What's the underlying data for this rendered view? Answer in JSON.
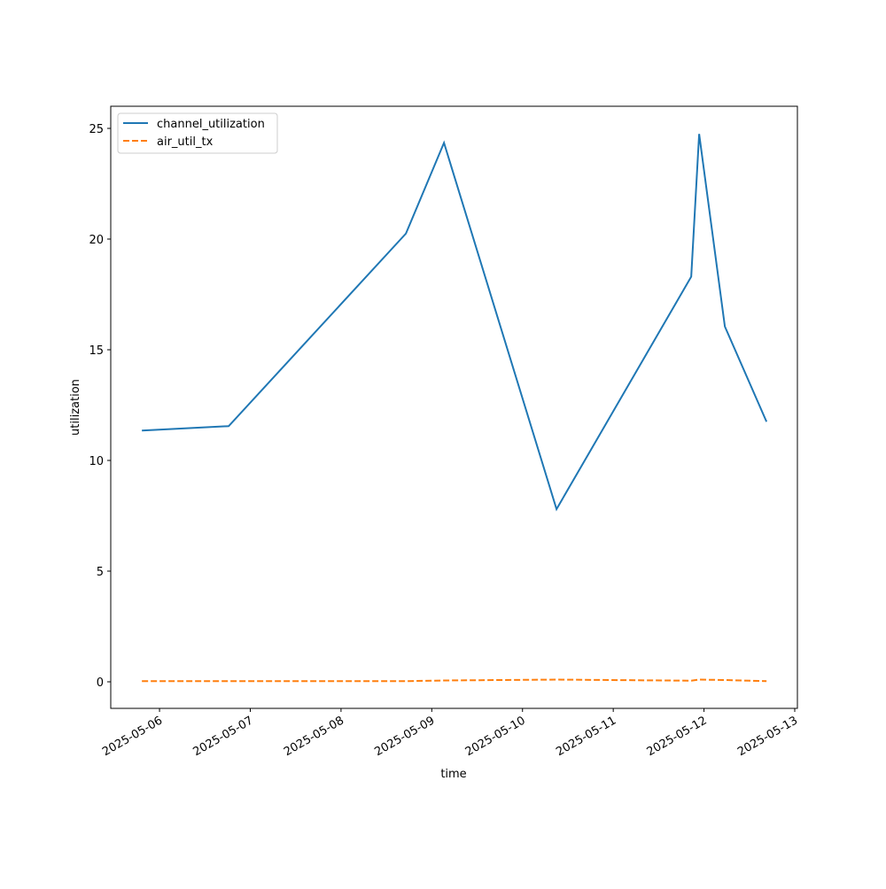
{
  "chart_data": {
    "type": "line",
    "x_label": "time",
    "y_label": "utilization",
    "x": [
      "2025-05-05T19:20",
      "2025-05-06T18:17",
      "2025-05-08T17:10",
      "2025-05-09T03:14",
      "2025-05-10T09:00",
      "2025-05-11T20:37",
      "2025-05-11T22:43",
      "2025-05-12T05:31",
      "2025-05-12T16:32"
    ],
    "series": [
      {
        "name": "channel_utilization",
        "color": "#1f77b4",
        "dash": "solid",
        "values": [
          11.35,
          11.55,
          20.25,
          24.35,
          7.8,
          18.3,
          24.75,
          16.05,
          11.75
        ]
      },
      {
        "name": "air_util_tx",
        "color": "#ff7f0e",
        "dash": "dashed",
        "values": [
          0.03,
          0.03,
          0.03,
          0.06,
          0.1,
          0.05,
          0.1,
          0.08,
          0.03
        ]
      }
    ],
    "xlim": [
      "2025-05-05T11:06",
      "2025-05-13T00:42"
    ],
    "xticks": [
      "2025-05-06",
      "2025-05-07",
      "2025-05-08",
      "2025-05-09",
      "2025-05-10",
      "2025-05-11",
      "2025-05-12",
      "2025-05-13"
    ],
    "ylim": [
      -1.2,
      26
    ],
    "yticks": [
      0,
      5,
      10,
      15,
      20,
      25
    ],
    "legend": "upper left",
    "grid": false
  }
}
